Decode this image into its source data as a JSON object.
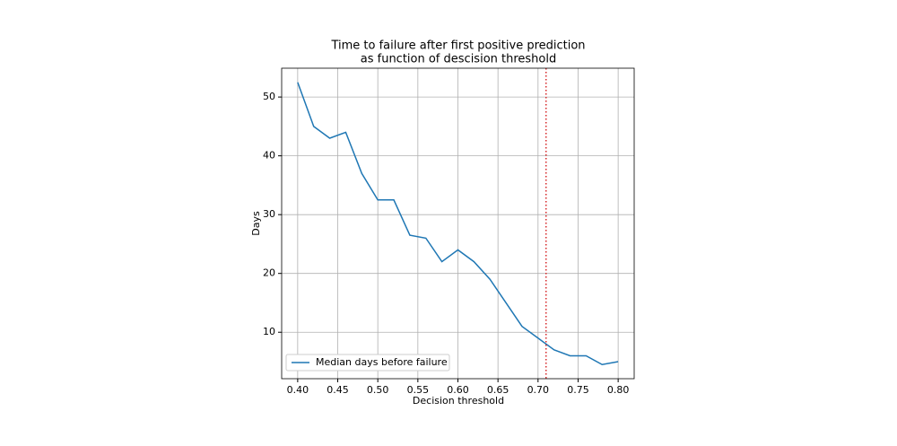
{
  "chart_data": {
    "type": "line",
    "title": [
      "Time to failure after first positive prediction",
      "as function of descision threshold"
    ],
    "xlabel": "Decision threshold",
    "ylabel": "Days",
    "x": [
      0.4,
      0.42,
      0.44,
      0.46,
      0.48,
      0.5,
      0.52,
      0.54,
      0.56,
      0.58,
      0.6,
      0.62,
      0.64,
      0.66,
      0.68,
      0.7,
      0.72,
      0.74,
      0.76,
      0.78,
      0.8
    ],
    "series": [
      {
        "name": "Median days before failure",
        "color": "#1f77b4",
        "values": [
          52.5,
          45,
          43,
          44,
          37,
          32.5,
          32.5,
          26.5,
          26,
          22,
          24,
          22,
          19,
          15,
          11,
          9,
          7,
          6,
          6,
          4.5,
          5
        ]
      }
    ],
    "vline": {
      "x": 0.71,
      "color": "#d62728"
    },
    "xlim": [
      0.38,
      0.82
    ],
    "ylim": [
      2.1,
      54.9
    ],
    "xticks": [
      {
        "value": 0.4,
        "label": "0.40"
      },
      {
        "value": 0.45,
        "label": "0.45"
      },
      {
        "value": 0.5,
        "label": "0.50"
      },
      {
        "value": 0.55,
        "label": "0.55"
      },
      {
        "value": 0.6,
        "label": "0.60"
      },
      {
        "value": 0.65,
        "label": "0.65"
      },
      {
        "value": 0.7,
        "label": "0.70"
      },
      {
        "value": 0.75,
        "label": "0.75"
      },
      {
        "value": 0.8,
        "label": "0.80"
      }
    ],
    "yticks": [
      10,
      20,
      30,
      40,
      50
    ],
    "grid": true,
    "legend": "lower left"
  }
}
